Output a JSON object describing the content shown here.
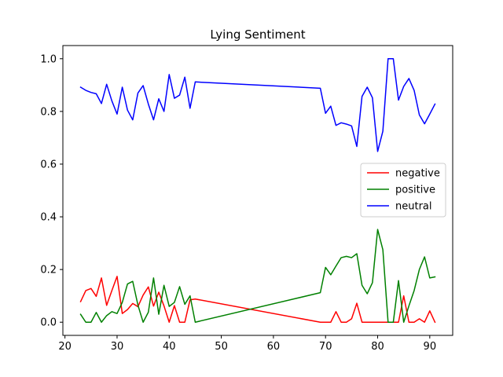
{
  "chart_data": {
    "type": "line",
    "title": "Lying Sentiment",
    "xlabel": "",
    "ylabel": "",
    "xlim": [
      19.6,
      94.4
    ],
    "ylim": [
      -0.05,
      1.05
    ],
    "xticks": [
      20,
      30,
      40,
      50,
      60,
      70,
      80,
      90
    ],
    "xtick_labels": [
      "20",
      "30",
      "40",
      "50",
      "60",
      "70",
      "80",
      "90"
    ],
    "yticks": [
      0.0,
      0.2,
      0.4,
      0.6,
      0.8,
      1.0
    ],
    "ytick_labels": [
      "0.0",
      "0.2",
      "0.4",
      "0.6",
      "0.8",
      "1.0"
    ],
    "grid": false,
    "legend": "center-right",
    "x": [
      23,
      24,
      25,
      26,
      27,
      28,
      29,
      30,
      31,
      32,
      33,
      34,
      35,
      36,
      37,
      38,
      39,
      40,
      41,
      42,
      43,
      44,
      45,
      69,
      70,
      71,
      72,
      73,
      74,
      75,
      76,
      77,
      78,
      79,
      80,
      81,
      82,
      83,
      84,
      85,
      86,
      87,
      88,
      89,
      90,
      91
    ],
    "series": [
      {
        "name": "negative",
        "color": "#ff0000",
        "values": [
          0.078,
          0.12,
          0.128,
          0.098,
          0.168,
          0.064,
          0.12,
          0.174,
          0.033,
          0.048,
          0.071,
          0.059,
          0.103,
          0.134,
          0.061,
          0.114,
          0.062,
          0.0,
          0.063,
          0.0,
          0.0,
          0.085,
          0.088,
          0.0,
          0.0,
          0.0,
          0.04,
          0.0,
          0.0,
          0.013,
          0.072,
          0.0,
          0.0,
          0.0,
          0.0,
          0.0,
          0.0,
          0.0,
          0.0,
          0.1,
          0.0,
          0.0,
          0.013,
          0.0,
          0.043,
          0.0
        ]
      },
      {
        "name": "positive",
        "color": "#008000",
        "values": [
          0.03,
          0.0,
          0.0,
          0.037,
          0.0,
          0.025,
          0.04,
          0.033,
          0.075,
          0.145,
          0.155,
          0.065,
          0.0,
          0.038,
          0.168,
          0.03,
          0.14,
          0.06,
          0.075,
          0.135,
          0.068,
          0.1,
          0.0,
          0.112,
          0.208,
          0.18,
          0.213,
          0.245,
          0.25,
          0.245,
          0.26,
          0.14,
          0.108,
          0.15,
          0.352,
          0.275,
          0.0,
          0.0,
          0.158,
          0.0,
          0.062,
          0.12,
          0.2,
          0.248,
          0.168,
          0.172
        ]
      },
      {
        "name": "neutral",
        "color": "#0000ff",
        "values": [
          0.892,
          0.88,
          0.872,
          0.867,
          0.83,
          0.903,
          0.84,
          0.79,
          0.892,
          0.805,
          0.768,
          0.87,
          0.898,
          0.828,
          0.768,
          0.848,
          0.8,
          0.94,
          0.85,
          0.862,
          0.93,
          0.812,
          0.912,
          0.888,
          0.793,
          0.82,
          0.747,
          0.757,
          0.752,
          0.745,
          0.667,
          0.857,
          0.892,
          0.852,
          0.648,
          0.725,
          1.0,
          1.0,
          0.843,
          0.895,
          0.925,
          0.88,
          0.787,
          0.753,
          0.79,
          0.828
        ]
      }
    ]
  }
}
